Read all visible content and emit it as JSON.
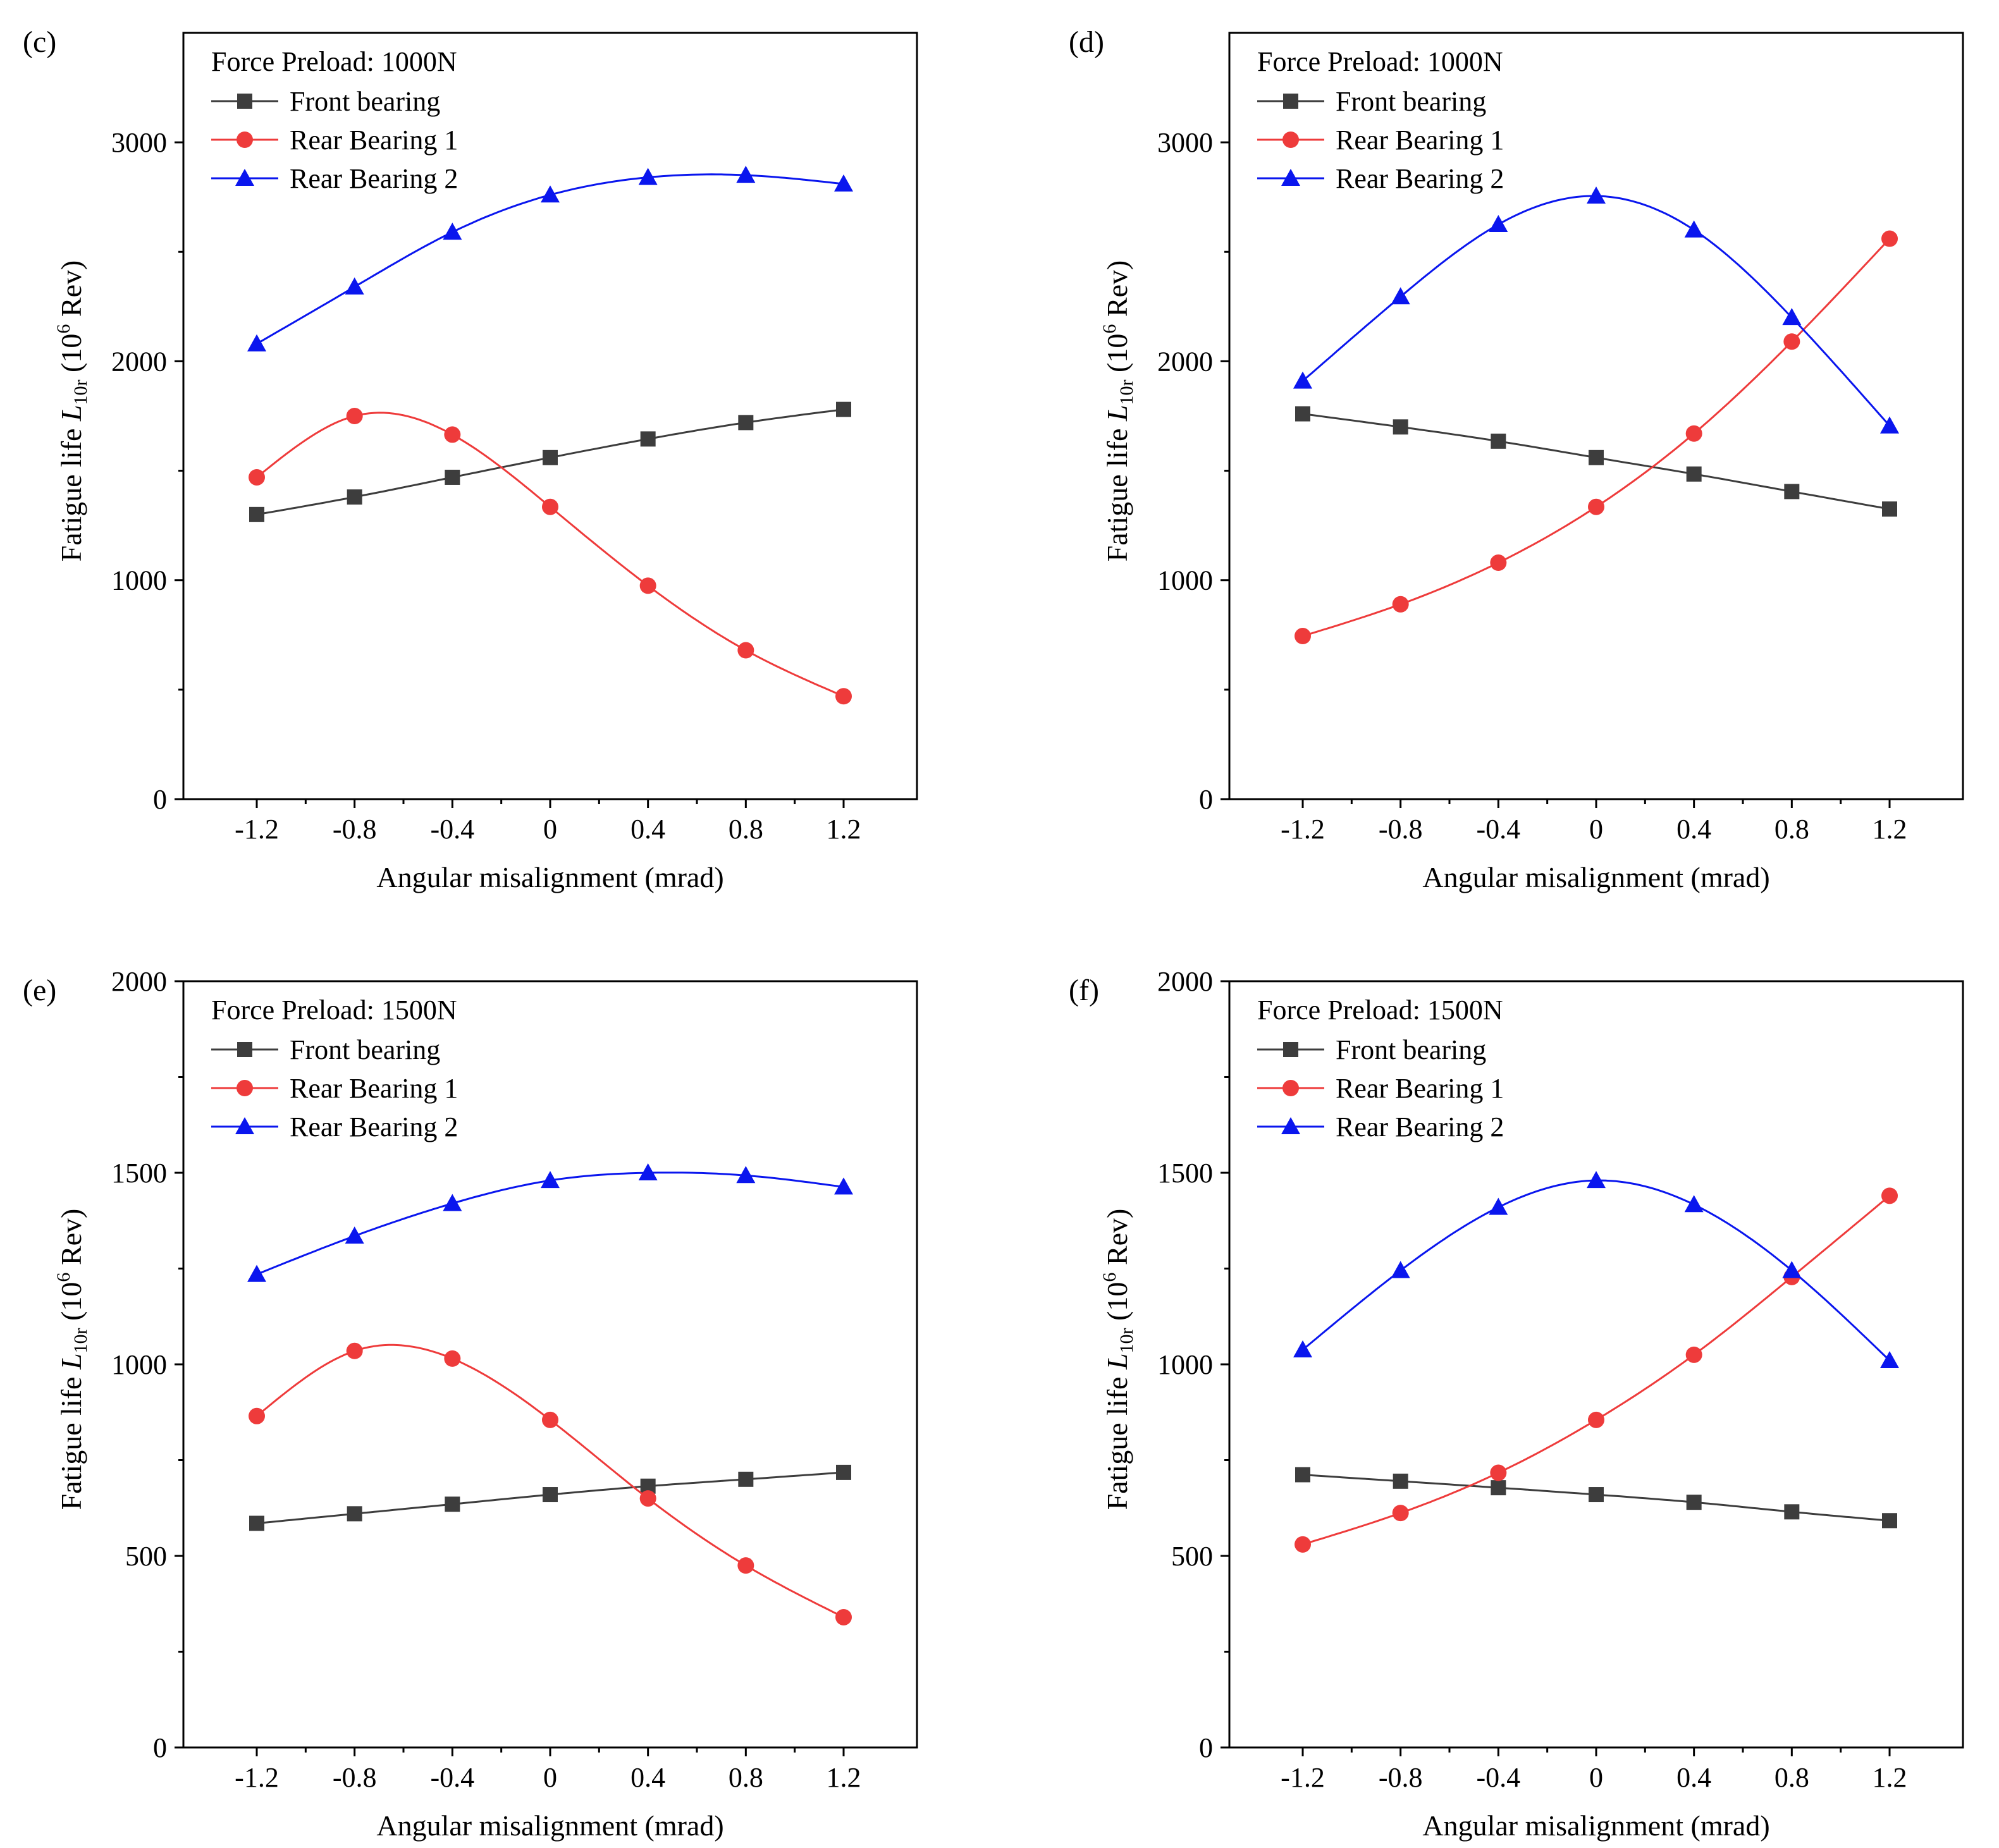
{
  "colors": {
    "front": "#3d3d3d",
    "rear1": "#ee3b3b",
    "rear2": "#0a16ee",
    "axis": "#000000"
  },
  "markers": {
    "Front bearing": "square",
    "Rear Bearing 1": "circle",
    "Rear Bearing 2": "triangle"
  },
  "chart_data": [
    {
      "type": "line",
      "panel_label": "(c)",
      "annotation": "Force Preload: 1000N",
      "xlabel": "Angular misalignment (mrad)",
      "ylabel": {
        "main": "Fatigue life ",
        "italic": "L",
        "sub": "10r",
        "unit_pre": " (10",
        "sup": "6",
        "unit_post": " Rev)"
      },
      "x": [
        -1.2,
        -0.8,
        -0.4,
        0,
        0.4,
        0.8,
        1.2
      ],
      "xticks": [
        "-1.2",
        "-0.8",
        "-0.4",
        "0",
        "0.4",
        "0.8",
        "1.2"
      ],
      "xlim": [
        -1.5,
        1.5
      ],
      "ylim": [
        0,
        3500
      ],
      "yticks": [
        0,
        1000,
        2000,
        3000
      ],
      "series": [
        {
          "name": "Front bearing",
          "values": [
            1300,
            1380,
            1470,
            1560,
            1645,
            1720,
            1780
          ]
        },
        {
          "name": "Rear Bearing 1",
          "values": [
            1470,
            1750,
            1665,
            1335,
            975,
            680,
            470
          ]
        },
        {
          "name": "Rear Bearing 2",
          "values": [
            2080,
            2340,
            2590,
            2760,
            2840,
            2850,
            2810
          ]
        }
      ],
      "legend": "top-left",
      "grid": false
    },
    {
      "type": "line",
      "panel_label": "(d)",
      "annotation": "Force Preload: 1000N",
      "xlabel": "Angular misalignment (mrad)",
      "ylabel": {
        "main": "Fatigue life ",
        "italic": "L",
        "sub": "10r",
        "unit_pre": " (10",
        "sup": "6",
        "unit_post": " Rev)"
      },
      "x": [
        -1.2,
        -0.8,
        -0.4,
        0,
        0.4,
        0.8,
        1.2
      ],
      "xticks": [
        "-1.2",
        "-0.8",
        "-0.4",
        "0",
        "0.4",
        "0.8",
        "1.2"
      ],
      "xlim": [
        -1.5,
        1.5
      ],
      "ylim": [
        0,
        3500
      ],
      "yticks": [
        0,
        1000,
        2000,
        3000
      ],
      "series": [
        {
          "name": "Front bearing",
          "values": [
            1760,
            1700,
            1635,
            1560,
            1485,
            1405,
            1325
          ]
        },
        {
          "name": "Rear Bearing 1",
          "values": [
            745,
            890,
            1080,
            1335,
            1670,
            2090,
            2560
          ]
        },
        {
          "name": "Rear Bearing 2",
          "values": [
            1910,
            2295,
            2625,
            2755,
            2600,
            2200,
            1705
          ]
        }
      ],
      "legend": "top-left",
      "grid": false
    },
    {
      "type": "line",
      "panel_label": "(e)",
      "annotation": "Force Preload: 1500N",
      "xlabel": "Angular misalignment (mrad)",
      "ylabel": {
        "main": "Fatigue life ",
        "italic": "L",
        "sub": "10r",
        "unit_pre": " (10",
        "sup": "6",
        "unit_post": " Rev)"
      },
      "x": [
        -1.2,
        -0.8,
        -0.4,
        0,
        0.4,
        0.8,
        1.2
      ],
      "xticks": [
        "-1.2",
        "-0.8",
        "-0.4",
        "0",
        "0.4",
        "0.8",
        "1.2"
      ],
      "xlim": [
        -1.5,
        1.5
      ],
      "ylim": [
        0,
        2000
      ],
      "yticks": [
        0,
        500,
        1000,
        1500,
        2000
      ],
      "series": [
        {
          "name": "Front bearing",
          "values": [
            585,
            610,
            635,
            660,
            682,
            700,
            718
          ]
        },
        {
          "name": "Rear Bearing 1",
          "values": [
            865,
            1035,
            1015,
            855,
            650,
            475,
            340
          ]
        },
        {
          "name": "Rear Bearing 2",
          "values": [
            1235,
            1335,
            1420,
            1480,
            1500,
            1493,
            1463
          ]
        }
      ],
      "legend": "top-left",
      "grid": false
    },
    {
      "type": "line",
      "panel_label": "(f)",
      "annotation": "Force Preload: 1500N",
      "xlabel": "Angular misalignment (mrad)",
      "ylabel": {
        "main": "Fatigue life ",
        "italic": "L",
        "sub": "10r",
        "unit_pre": " (10",
        "sup": "6",
        "unit_post": " Rev)"
      },
      "x": [
        -1.2,
        -0.8,
        -0.4,
        0,
        0.4,
        0.8,
        1.2
      ],
      "xticks": [
        "-1.2",
        "-0.8",
        "-0.4",
        "0",
        "0.4",
        "0.8",
        "1.2"
      ],
      "xlim": [
        -1.5,
        1.5
      ],
      "ylim": [
        0,
        2000
      ],
      "yticks": [
        0,
        500,
        1000,
        1500,
        2000
      ],
      "series": [
        {
          "name": "Front bearing",
          "values": [
            712,
            695,
            678,
            660,
            640,
            615,
            592
          ]
        },
        {
          "name": "Rear Bearing 1",
          "values": [
            530,
            612,
            717,
            855,
            1025,
            1228,
            1440
          ]
        },
        {
          "name": "Rear Bearing 2",
          "values": [
            1038,
            1245,
            1410,
            1480,
            1417,
            1245,
            1010
          ]
        }
      ],
      "legend": "top-left",
      "grid": false
    }
  ]
}
